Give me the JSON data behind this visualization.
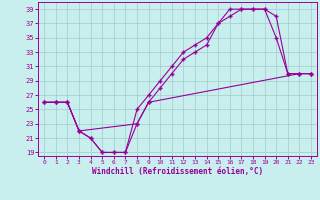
{
  "bg_color": "#c8eeee",
  "grid_color": "#a0cccc",
  "line_color": "#990099",
  "xlim_min": -0.5,
  "xlim_max": 23.5,
  "ylim_min": 18.5,
  "ylim_max": 40.0,
  "xticks": [
    0,
    1,
    2,
    3,
    4,
    5,
    6,
    7,
    8,
    9,
    10,
    11,
    12,
    13,
    14,
    15,
    16,
    17,
    18,
    19,
    20,
    21,
    22,
    23
  ],
  "yticks": [
    19,
    21,
    23,
    25,
    27,
    29,
    31,
    33,
    35,
    37,
    39
  ],
  "xlabel": "Windchill (Refroidissement éolien,°C)",
  "line1_x": [
    0,
    1,
    2,
    3,
    4,
    5,
    6,
    7,
    8,
    9,
    10,
    11,
    12,
    13,
    14,
    15,
    16,
    17,
    18,
    19,
    20,
    21,
    22,
    23
  ],
  "line1_y": [
    26,
    26,
    26,
    22,
    21,
    19,
    19,
    19,
    23,
    26,
    28,
    30,
    32,
    33,
    34,
    37,
    38,
    39,
    39,
    39,
    35,
    30,
    30,
    30
  ],
  "line2_x": [
    0,
    1,
    2,
    3,
    4,
    5,
    6,
    7,
    8,
    9,
    10,
    11,
    12,
    13,
    14,
    15,
    16,
    17,
    18,
    19,
    20,
    21,
    22,
    23
  ],
  "line2_y": [
    26,
    26,
    26,
    22,
    21,
    19,
    19,
    19,
    25,
    27,
    29,
    31,
    33,
    34,
    35,
    37,
    39,
    39,
    39,
    39,
    38,
    30,
    30,
    30
  ],
  "line3_x": [
    0,
    1,
    2,
    3,
    8,
    9,
    22,
    23
  ],
  "line3_y": [
    26,
    26,
    26,
    22,
    23,
    26,
    30,
    30
  ]
}
